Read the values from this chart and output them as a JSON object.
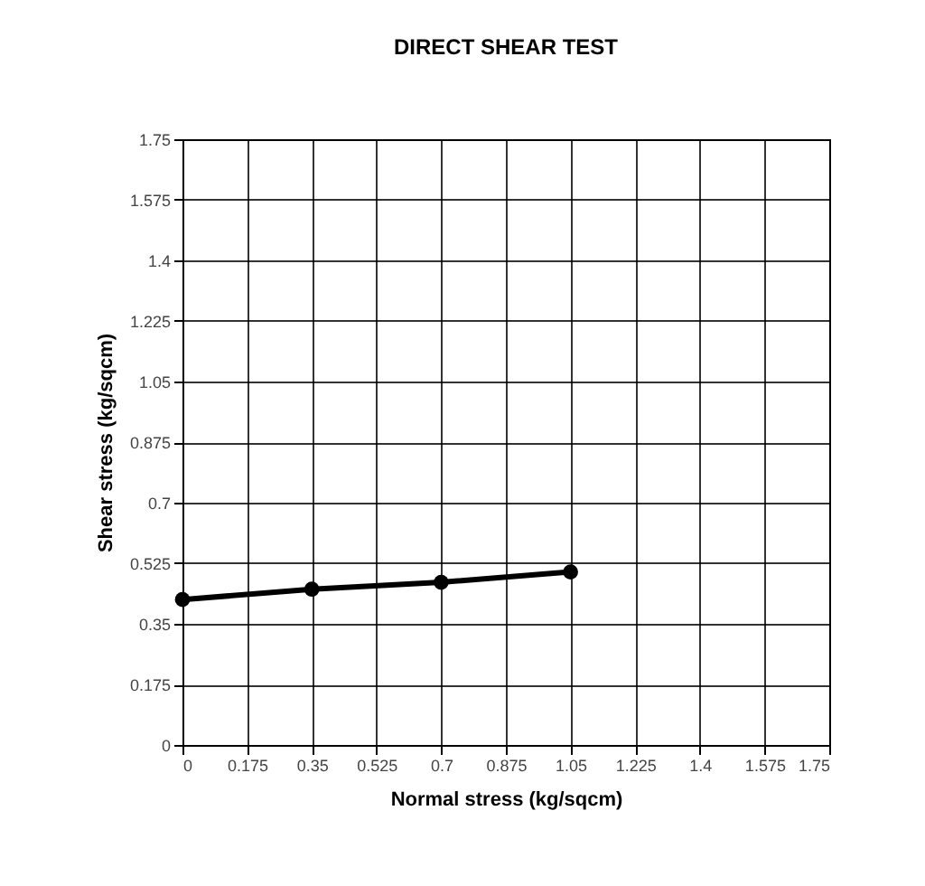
{
  "chart_data": {
    "type": "line",
    "title": "DIRECT SHEAR TEST",
    "xlabel": "Normal stress (kg/sqcm)",
    "ylabel": "Shear stress (kg/sqcm)",
    "x": [
      0,
      0.35,
      0.7,
      1.05
    ],
    "series": [
      {
        "color": "#000000",
        "values": [
          0.42,
          0.45,
          0.47,
          0.5
        ]
      }
    ],
    "xlim": [
      0,
      1.75
    ],
    "xticks": [
      0,
      0.175,
      0.35,
      0.525,
      0.7,
      0.875,
      1.05,
      1.225,
      1.4,
      1.575,
      1.75
    ],
    "ylim": [
      0,
      1.75
    ],
    "yticks": [
      0,
      0.175,
      0.35,
      0.525,
      0.7,
      0.875,
      1.05,
      1.225,
      1.4,
      1.575,
      1.75
    ],
    "grid": true,
    "marker": "circle",
    "line_style": "solid"
  }
}
